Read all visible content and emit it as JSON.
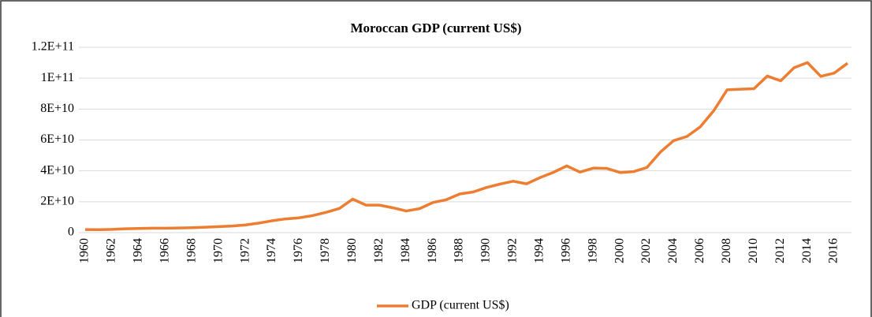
{
  "chart_data": {
    "type": "line",
    "title": "Moroccan GDP (current US$)",
    "x": [
      1960,
      1961,
      1962,
      1963,
      1964,
      1965,
      1966,
      1967,
      1968,
      1969,
      1970,
      1971,
      1972,
      1973,
      1974,
      1975,
      1976,
      1977,
      1978,
      1979,
      1980,
      1981,
      1982,
      1983,
      1984,
      1985,
      1986,
      1987,
      1988,
      1989,
      1990,
      1991,
      1992,
      1993,
      1994,
      1995,
      1996,
      1997,
      1998,
      1999,
      2000,
      2001,
      2002,
      2003,
      2004,
      2005,
      2006,
      2007,
      2008,
      2009,
      2010,
      2011,
      2012,
      2013,
      2014,
      2015,
      2016,
      2017
    ],
    "series": [
      {
        "name": "GDP (current US$)",
        "color": "#ed7d31",
        "values": [
          2000000000,
          1900000000,
          2100000000,
          2500000000,
          2700000000,
          2900000000,
          2900000000,
          3000000000,
          3200000000,
          3500000000,
          3900000000,
          4300000000,
          5000000000,
          6200000000,
          7700000000,
          8900000000,
          9600000000,
          11000000000,
          13100000000,
          15600000000,
          21700000000,
          17800000000,
          17800000000,
          16100000000,
          14000000000,
          15500000000,
          19500000000,
          21300000000,
          25000000000,
          26300000000,
          29200000000,
          31400000000,
          33300000000,
          31600000000,
          35600000000,
          39000000000,
          43200000000,
          39200000000,
          41800000000,
          41600000000,
          38900000000,
          39500000000,
          42200000000,
          52100000000,
          59600000000,
          62300000000,
          68600000000,
          79000000000,
          92500000000,
          92900000000,
          93200000000,
          101400000000,
          98300000000,
          106800000000,
          110100000000,
          101200000000,
          103300000000,
          109700000000
        ]
      }
    ],
    "xlim": [
      1960,
      2017
    ],
    "xticks": [
      1960,
      1962,
      1964,
      1966,
      1968,
      1970,
      1972,
      1974,
      1976,
      1978,
      1980,
      1982,
      1984,
      1986,
      1988,
      1990,
      1992,
      1994,
      1996,
      1998,
      2000,
      2002,
      2004,
      2006,
      2008,
      2010,
      2012,
      2014,
      2016
    ],
    "ylim": [
      0,
      120000000000
    ],
    "yticks": [
      0,
      {
        "value": 20000000000,
        "label": "2E+10"
      },
      {
        "value": 40000000000,
        "label": "4E+10"
      },
      {
        "value": 60000000000,
        "label": "6E+10"
      },
      {
        "value": 80000000000,
        "label": "8E+10"
      },
      {
        "value": 100000000000,
        "label": "1E+11"
      },
      {
        "value": 120000000000,
        "label": "1.2E+11"
      }
    ],
    "grid": true,
    "legend": "bottom"
  }
}
